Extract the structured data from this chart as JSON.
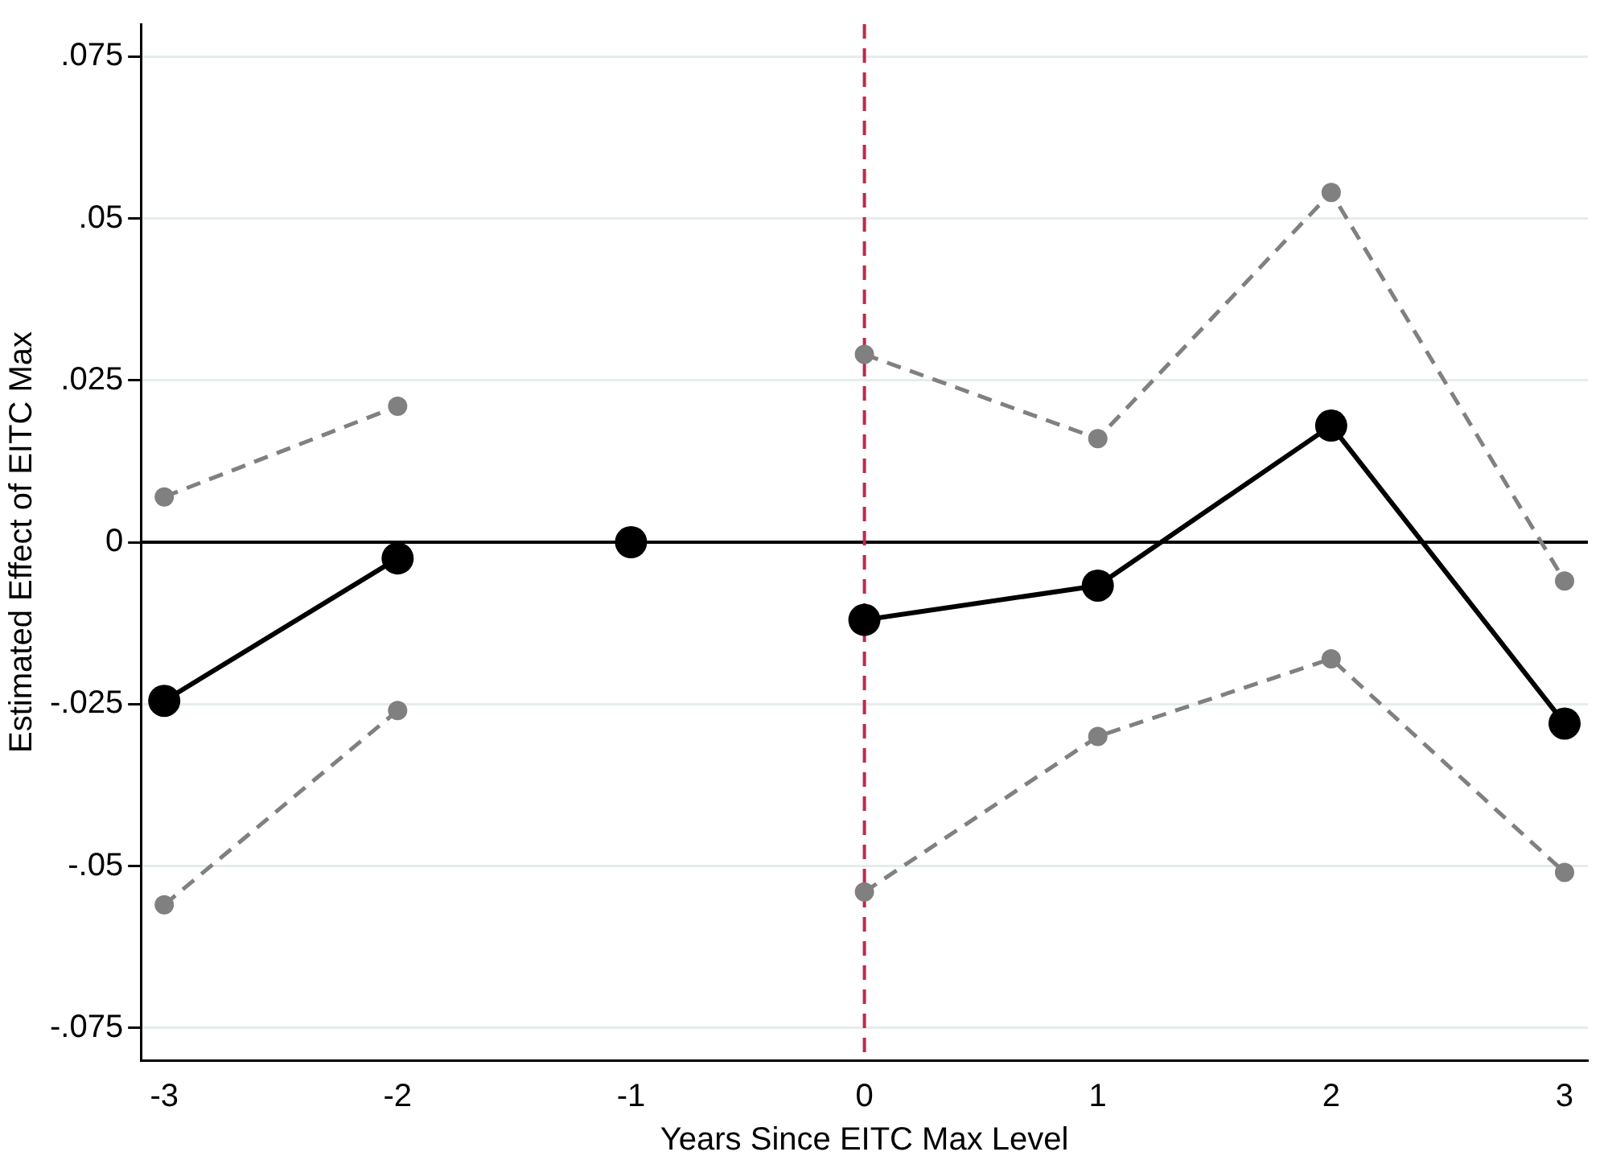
{
  "chart_data": {
    "type": "line",
    "xlabel": "Years Since EITC Max Level",
    "ylabel": "Estimated Effect of EITC Max",
    "x": [
      -3,
      -2,
      -1,
      0,
      1,
      2,
      3
    ],
    "series": [
      {
        "type": "line",
        "color": "#808080",
        "line_style": "dashed",
        "values": [
          0.007,
          0.021,
          null,
          0.029,
          0.016,
          0.054,
          -0.006
        ]
      },
      {
        "type": "line",
        "color": "#808080",
        "line_style": "dashed",
        "values": [
          -0.056,
          -0.026,
          null,
          -0.054,
          -0.03,
          -0.018,
          -0.051
        ]
      },
      {
        "type": "line",
        "color": "#000000",
        "line_style": "solid",
        "values": [
          -0.0245,
          -0.0025,
          null,
          -0.012,
          -0.0067,
          0.018,
          -0.028
        ]
      },
      {
        "type": "scatter",
        "color": "#000000",
        "values": [
          null,
          null,
          0,
          null,
          null,
          null,
          null
        ]
      }
    ],
    "xlim": [
      -3.1,
      3.1
    ],
    "xticks": [
      -3,
      -2,
      -1,
      0,
      1,
      2,
      3
    ],
    "ylim": [
      -0.08,
      0.08
    ],
    "yticks": [
      {
        "value": -0.075,
        "label": "-.075"
      },
      {
        "value": -0.05,
        "label": "-.05"
      },
      {
        "value": -0.025,
        "label": "-.025"
      },
      0,
      {
        "value": 0.025,
        "label": ".025"
      },
      {
        "value": 0.05,
        "label": ".05"
      },
      {
        "value": 0.075,
        "label": ".075"
      }
    ],
    "ref_lines": [
      {
        "axis": "y",
        "value": 0,
        "color": "#000000",
        "line_style": "solid"
      },
      {
        "axis": "x",
        "value": 0,
        "color": "#c0284a",
        "line_style": "dashed"
      }
    ],
    "grid": "y",
    "legend": false,
    "marker": "circle"
  }
}
